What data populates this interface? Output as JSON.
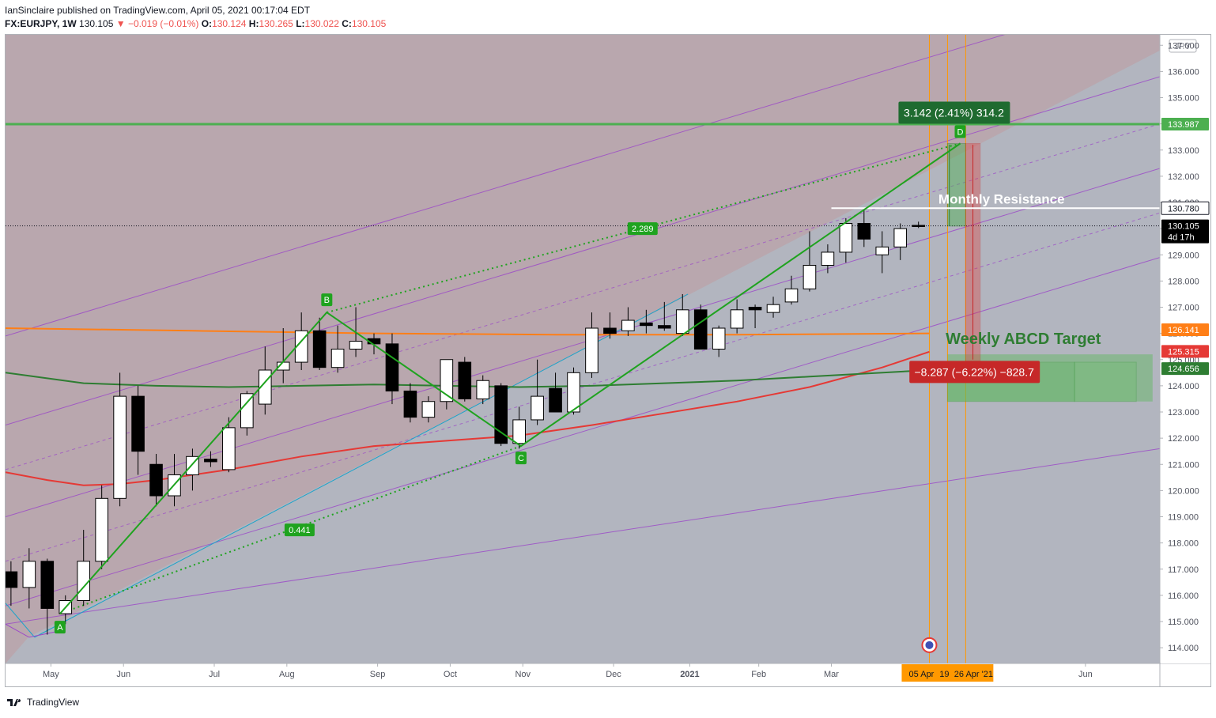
{
  "header": {
    "publisher": "IanSinclaire published on TradingView.com, April 05, 2021 00:17:04 EDT",
    "symbol": "FX:EURJPY, 1W",
    "last": "130.105",
    "change": "▼ −0.019 (−0.01%)",
    "o_label": "O:",
    "o": "130.124",
    "h_label": "H:",
    "h": "130.265",
    "l_label": "L:",
    "l": "130.022",
    "c_label": "C:",
    "c": "130.105"
  },
  "footer": {
    "brand": "TradingView"
  },
  "colors": {
    "bg_upper": "#b9a6ad",
    "bg_lower": "#b2b5bf",
    "up_candle": "#ffffff",
    "down_candle": "#000000",
    "abcd": "#1fa31f",
    "resistance": "#4caf50",
    "ma_orange": "#ff7f17",
    "ma_red": "#e53935",
    "ma_green": "#2e7d32",
    "channel": "#9b47c8",
    "fib_blue": "#1da3c9"
  },
  "chart_data": {
    "type": "candlestick",
    "currency": "JPY",
    "ylim": [
      113.4,
      137.4
    ],
    "y_ticks": [
      "114.000",
      "115.000",
      "116.000",
      "117.000",
      "118.000",
      "119.000",
      "120.000",
      "121.000",
      "122.000",
      "123.000",
      "124.000",
      "125.000",
      "126.000",
      "127.000",
      "128.000",
      "129.000",
      "130.000",
      "131.000",
      "132.000",
      "133.000",
      "134.000",
      "135.000",
      "136.000",
      "137.000"
    ],
    "x_ticks": [
      {
        "i": 2.2,
        "label": "May"
      },
      {
        "i": 6.2,
        "label": "Jun"
      },
      {
        "i": 11.2,
        "label": "Jul"
      },
      {
        "i": 15.2,
        "label": "Aug"
      },
      {
        "i": 20.2,
        "label": "Sep"
      },
      {
        "i": 24.2,
        "label": "Oct"
      },
      {
        "i": 28.2,
        "label": "Nov"
      },
      {
        "i": 33.2,
        "label": "Dec"
      },
      {
        "i": 37.4,
        "label": "2021"
      },
      {
        "i": 41.2,
        "label": "Feb"
      },
      {
        "i": 45.2,
        "label": "Mar"
      },
      {
        "i": 59.2,
        "label": "Jun"
      }
    ],
    "x_range": [
      -0.3,
      63.3
    ],
    "candles": [
      {
        "o": 116.9,
        "h": 117.3,
        "l": 115.6,
        "c": 116.3
      },
      {
        "o": 116.3,
        "h": 117.8,
        "l": 115.5,
        "c": 117.3
      },
      {
        "o": 117.3,
        "h": 117.4,
        "l": 114.5,
        "c": 115.5
      },
      {
        "o": 115.3,
        "h": 116.0,
        "l": 114.9,
        "c": 115.8
      },
      {
        "o": 115.8,
        "h": 118.5,
        "l": 115.6,
        "c": 117.3
      },
      {
        "o": 117.3,
        "h": 120.2,
        "l": 117.0,
        "c": 119.7
      },
      {
        "o": 119.7,
        "h": 124.5,
        "l": 119.4,
        "c": 123.6
      },
      {
        "o": 123.6,
        "h": 124.0,
        "l": 120.6,
        "c": 121.5
      },
      {
        "o": 121.0,
        "h": 121.4,
        "l": 119.4,
        "c": 119.8
      },
      {
        "o": 119.8,
        "h": 121.4,
        "l": 119.4,
        "c": 120.6
      },
      {
        "o": 120.6,
        "h": 121.6,
        "l": 120.0,
        "c": 121.3
      },
      {
        "o": 121.2,
        "h": 121.5,
        "l": 120.9,
        "c": 121.1
      },
      {
        "o": 120.8,
        "h": 122.8,
        "l": 120.7,
        "c": 122.4
      },
      {
        "o": 122.4,
        "h": 123.8,
        "l": 122.1,
        "c": 123.7
      },
      {
        "o": 123.3,
        "h": 125.5,
        "l": 122.9,
        "c": 124.6
      },
      {
        "o": 124.6,
        "h": 126.2,
        "l": 124.1,
        "c": 124.9
      },
      {
        "o": 124.9,
        "h": 126.8,
        "l": 124.6,
        "c": 126.1
      },
      {
        "o": 126.1,
        "h": 126.6,
        "l": 124.6,
        "c": 124.7
      },
      {
        "o": 124.7,
        "h": 126.3,
        "l": 124.5,
        "c": 125.4
      },
      {
        "o": 125.4,
        "h": 127.0,
        "l": 125.1,
        "c": 125.7
      },
      {
        "o": 125.8,
        "h": 126.0,
        "l": 125.2,
        "c": 125.6
      },
      {
        "o": 125.6,
        "h": 126.0,
        "l": 123.3,
        "c": 123.8
      },
      {
        "o": 123.8,
        "h": 124.1,
        "l": 122.6,
        "c": 122.8
      },
      {
        "o": 122.8,
        "h": 123.6,
        "l": 122.6,
        "c": 123.4
      },
      {
        "o": 123.4,
        "h": 125.0,
        "l": 123.1,
        "c": 125.0
      },
      {
        "o": 124.9,
        "h": 125.1,
        "l": 123.4,
        "c": 123.5
      },
      {
        "o": 123.5,
        "h": 124.4,
        "l": 123.3,
        "c": 124.2
      },
      {
        "o": 124.0,
        "h": 124.1,
        "l": 121.7,
        "c": 121.8
      },
      {
        "o": 121.8,
        "h": 123.2,
        "l": 121.6,
        "c": 122.7
      },
      {
        "o": 122.7,
        "h": 125.0,
        "l": 122.5,
        "c": 123.6
      },
      {
        "o": 123.9,
        "h": 124.5,
        "l": 123.0,
        "c": 123.0
      },
      {
        "o": 123.0,
        "h": 124.7,
        "l": 122.9,
        "c": 124.5
      },
      {
        "o": 124.5,
        "h": 126.8,
        "l": 124.3,
        "c": 126.2
      },
      {
        "o": 126.2,
        "h": 126.8,
        "l": 125.8,
        "c": 126.0
      },
      {
        "o": 126.1,
        "h": 127.0,
        "l": 125.9,
        "c": 126.5
      },
      {
        "o": 126.4,
        "h": 126.9,
        "l": 126.0,
        "c": 126.3
      },
      {
        "o": 126.3,
        "h": 127.2,
        "l": 126.1,
        "c": 126.2
      },
      {
        "o": 126.0,
        "h": 127.5,
        "l": 125.9,
        "c": 126.9
      },
      {
        "o": 126.9,
        "h": 127.1,
        "l": 125.4,
        "c": 125.4
      },
      {
        "o": 125.4,
        "h": 126.3,
        "l": 125.1,
        "c": 126.2
      },
      {
        "o": 126.2,
        "h": 127.3,
        "l": 126.0,
        "c": 126.9
      },
      {
        "o": 127.0,
        "h": 127.1,
        "l": 126.2,
        "c": 126.9
      },
      {
        "o": 126.8,
        "h": 127.4,
        "l": 126.6,
        "c": 127.1
      },
      {
        "o": 127.2,
        "h": 128.2,
        "l": 127.1,
        "c": 127.7
      },
      {
        "o": 127.7,
        "h": 129.9,
        "l": 127.6,
        "c": 128.6
      },
      {
        "o": 128.6,
        "h": 129.4,
        "l": 128.3,
        "c": 129.1
      },
      {
        "o": 129.1,
        "h": 130.4,
        "l": 128.7,
        "c": 130.2
      },
      {
        "o": 130.2,
        "h": 130.7,
        "l": 129.3,
        "c": 129.6
      },
      {
        "o": 129.0,
        "h": 129.9,
        "l": 128.3,
        "c": 129.3
      },
      {
        "o": 129.3,
        "h": 130.2,
        "l": 128.8,
        "c": 130.0
      },
      {
        "o": 130.124,
        "h": 130.265,
        "l": 130.022,
        "c": 130.105
      }
    ],
    "moving_averages": [
      {
        "color": "#ff7f17",
        "points": [
          [
            -0.3,
            126.2
          ],
          [
            10,
            126.1
          ],
          [
            20,
            126.0
          ],
          [
            30,
            125.95
          ],
          [
            40,
            125.95
          ],
          [
            50.6,
            126.0
          ]
        ]
      },
      {
        "color": "#e53935",
        "points": [
          [
            -0.3,
            120.7
          ],
          [
            2,
            120.4
          ],
          [
            4,
            120.2
          ],
          [
            6,
            120.25
          ],
          [
            8,
            120.4
          ],
          [
            12,
            120.8
          ],
          [
            16,
            121.3
          ],
          [
            20,
            121.7
          ],
          [
            24,
            121.9
          ],
          [
            28,
            122.1
          ],
          [
            32,
            122.5
          ],
          [
            36,
            122.95
          ],
          [
            40,
            123.4
          ],
          [
            44,
            123.95
          ],
          [
            48,
            124.7
          ],
          [
            50.6,
            125.3
          ]
        ]
      },
      {
        "color": "#2e7d32",
        "points": [
          [
            -0.3,
            124.5
          ],
          [
            4,
            124.1
          ],
          [
            8,
            124.0
          ],
          [
            12,
            123.95
          ],
          [
            20,
            124.05
          ],
          [
            24,
            124.0
          ],
          [
            28,
            123.95
          ],
          [
            32,
            124.0
          ],
          [
            36,
            124.1
          ],
          [
            40,
            124.2
          ],
          [
            44,
            124.35
          ],
          [
            50.6,
            124.6
          ]
        ]
      }
    ],
    "abcd": {
      "A": {
        "i": 2.7,
        "p": 115.3
      },
      "B": {
        "i": 17.4,
        "p": 126.8
      },
      "C": {
        "i": 28.1,
        "p": 121.7
      },
      "D": {
        "i": 52.3,
        "p": 133.25
      }
    },
    "labels": {
      "A": "A",
      "B": "B",
      "C": "C",
      "D": "D",
      "ab_ratio": "2.289",
      "bc_ratio": "0.441"
    },
    "price_labels": [
      {
        "text": "133.987",
        "p": 133.987,
        "bg": "#4caf50",
        "fg": "#ffffff"
      },
      {
        "text": "130.780",
        "p": 130.78,
        "bg": "#ffffff",
        "fg": "#131722"
      },
      {
        "text": "130.105",
        "p": 130.105,
        "bg": "#000000",
        "fg": "#ffffff",
        "sub": "4d 17h"
      },
      {
        "text": "126.141",
        "p": 126.141,
        "bg": "#ff7f17",
        "fg": "#ffffff"
      },
      {
        "text": "125.315",
        "p": 125.315,
        "bg": "#e53935",
        "fg": "#ffffff"
      },
      {
        "text": "124.656",
        "p": 124.656,
        "bg": "#2e7d32",
        "fg": "#ffffff"
      }
    ],
    "annotations": {
      "up_box": "3.142 (2.41%) 314.2",
      "down_box": "−8.287 (−6.22%) −828.7",
      "resistance": "Monthly Resistance",
      "target": "Weekly ABCD Target"
    },
    "x_highlight": [
      "05 Apr",
      "19",
      "26 Apr '21"
    ],
    "time_marks": {
      "start": 50.6,
      "mid": 51.6,
      "end": 52.6
    }
  }
}
